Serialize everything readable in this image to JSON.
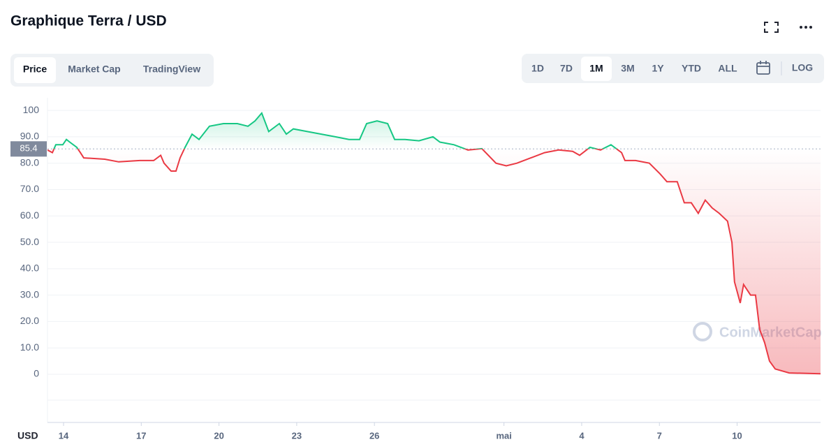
{
  "chart_data": {
    "type": "line",
    "title": "Graphique Terra / USD",
    "x": [
      13.38,
      13.57,
      13.7,
      13.97,
      14.11,
      14.24,
      14.51,
      14.65,
      14.78,
      15.59,
      16.13,
      16.94,
      17.48,
      17.75,
      17.88,
      18.15,
      18.34,
      18.5,
      18.69,
      18.96,
      19.23,
      19.63,
      20.17,
      20.71,
      21.12,
      21.39,
      21.65,
      21.92,
      22.33,
      22.6,
      22.87,
      23.41,
      23.95,
      24.49,
      25.02,
      25.43,
      25.7,
      26.1,
      26.51,
      26.78,
      27.18,
      27.72,
      28.26,
      28.53,
      29.07,
      29.61,
      30.15,
      30.69,
      31.09,
      31.5,
      32.04,
      32.57,
      33.11,
      33.65,
      33.92,
      34.32,
      34.73,
      35.13,
      35.54,
      35.67,
      36.08,
      36.61,
      37.02,
      37.29,
      37.69,
      37.96,
      38.23,
      38.5,
      38.77,
      39.04,
      39.31,
      39.63,
      39.8,
      39.9,
      40.01,
      40.12,
      40.25,
      40.52,
      40.71,
      40.87,
      41.06,
      41.25,
      41.47,
      42.01,
      43.22
    ],
    "values": [
      85,
      84,
      87,
      87,
      89,
      88,
      86,
      84,
      82,
      81.5,
      80.5,
      81,
      81,
      83,
      80,
      77,
      77,
      82,
      86,
      91,
      89,
      94,
      95,
      95,
      94,
      96,
      99,
      92,
      95,
      91,
      93,
      92,
      91,
      90,
      89,
      89,
      95,
      96,
      95,
      89,
      89,
      88.5,
      90,
      88,
      87,
      85,
      85.5,
      80,
      79,
      80,
      82,
      84,
      85,
      84.5,
      83,
      86,
      85,
      87,
      84,
      81,
      81,
      80,
      76,
      73,
      73,
      65,
      65,
      61,
      66,
      63,
      61,
      58,
      50,
      35,
      31,
      27,
      34,
      30,
      30,
      17,
      12,
      5,
      2,
      0.5,
      0.2
    ],
    "reference_value": 85.4,
    "color_up": "#16c784",
    "color_down": "#ea3943",
    "xlim": [
      13.38,
      43.22
    ],
    "xticks": [
      14,
      17,
      20,
      23,
      26,
      {
        "value": 31,
        "label": "mai"
      },
      {
        "value": 34,
        "label": "4"
      },
      {
        "value": 37,
        "label": "7"
      },
      {
        "value": 40,
        "label": "10"
      }
    ],
    "ylim": [
      -9.8,
      104.8
    ],
    "yticks": [
      0,
      {
        "value": 10,
        "label": "10.0"
      },
      {
        "value": 20,
        "label": "20.0"
      },
      {
        "value": 30,
        "label": "30.0"
      },
      {
        "value": 40,
        "label": "40.0"
      },
      {
        "value": 50,
        "label": "50.0"
      },
      {
        "value": 60,
        "label": "60.0"
      },
      {
        "value": 70,
        "label": "70.0"
      },
      {
        "value": 80,
        "label": "80.0"
      },
      {
        "value": 90,
        "label": "90.0"
      },
      100
    ],
    "grid": true,
    "currency_label": "USD",
    "watermark": "CoinMarketCap"
  },
  "toolbar": {
    "tabs": [
      "Price",
      "Market Cap",
      "TradingView"
    ],
    "active_tab": 0,
    "ranges": [
      "1D",
      "7D",
      "1M",
      "3M",
      "1Y",
      "YTD",
      "ALL"
    ],
    "active_range": 2,
    "log_label": "LOG"
  }
}
